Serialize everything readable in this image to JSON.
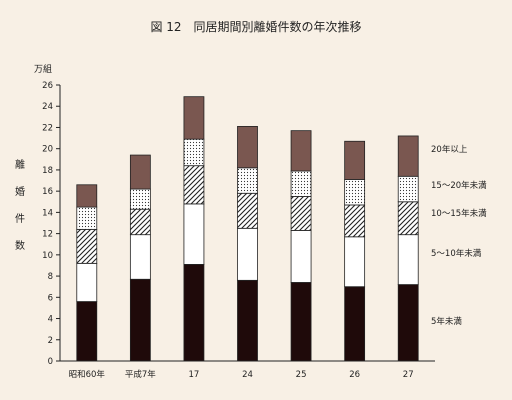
{
  "chart_data": {
    "type": "bar",
    "stacked": true,
    "title": "図 12　同居期間別離婚件数の年次推移",
    "unit_label": "万組",
    "ylabel": "離婚件数",
    "ylabel_chars": [
      "離",
      "婚",
      "件",
      "数"
    ],
    "ylim": [
      0,
      26
    ],
    "yticks": [
      0,
      2,
      4,
      6,
      8,
      10,
      12,
      14,
      16,
      18,
      20,
      22,
      24,
      26
    ],
    "grid": false,
    "legend_placement": "right",
    "categories": [
      "昭和60年",
      "平成7年",
      "17",
      "24",
      "25",
      "26",
      "27"
    ],
    "series": [
      {
        "name": "5年未満",
        "pattern": "solid-dark",
        "color": "#1f0a0a",
        "values": [
          5.6,
          7.7,
          9.1,
          7.6,
          7.4,
          7.0,
          7.2
        ]
      },
      {
        "name": "5～10年未満",
        "pattern": "white",
        "color": "#ffffff",
        "values": [
          3.6,
          4.2,
          5.7,
          4.9,
          4.9,
          4.7,
          4.7
        ]
      },
      {
        "name": "10～15年未満",
        "pattern": "hatch",
        "color": "#ffffff",
        "values": [
          3.2,
          2.4,
          3.6,
          3.3,
          3.2,
          3.0,
          3.1
        ]
      },
      {
        "name": "15～20年未満",
        "pattern": "dots",
        "color": "#ffffff",
        "values": [
          2.1,
          1.9,
          2.5,
          2.4,
          2.4,
          2.4,
          2.4
        ]
      },
      {
        "name": "20年以上",
        "pattern": "solid-brown",
        "color": "#7a5750",
        "values": [
          2.1,
          3.2,
          4.0,
          3.9,
          3.8,
          3.6,
          3.8
        ]
      }
    ]
  }
}
